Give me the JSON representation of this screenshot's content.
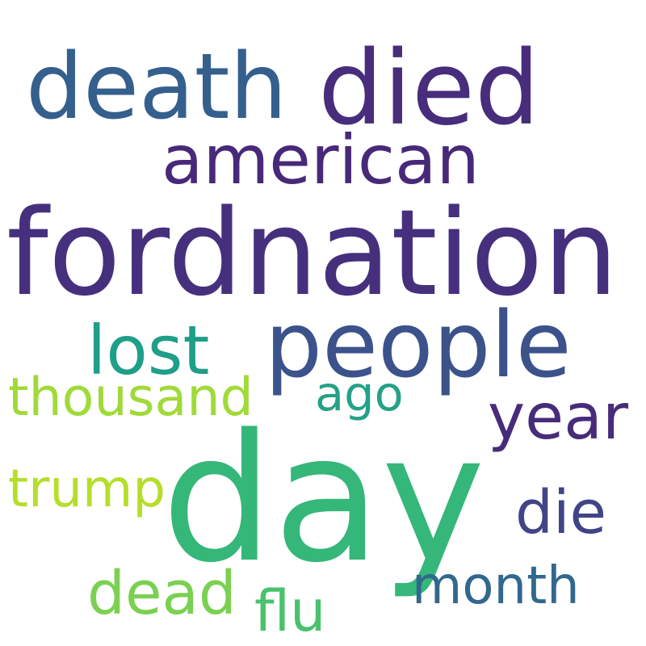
{
  "word_cloud": {
    "background": "#ffffff",
    "words": [
      {
        "id": "fordnation",
        "text": "fordnation",
        "color": "#46307e"
      },
      {
        "id": "day",
        "text": "day",
        "color": "#35b779"
      },
      {
        "id": "died",
        "text": "died",
        "color": "#472d7b"
      },
      {
        "id": "death",
        "text": "death",
        "color": "#355f8d"
      },
      {
        "id": "people",
        "text": "people",
        "color": "#3b528b"
      },
      {
        "id": "american",
        "text": "american",
        "color": "#482979"
      },
      {
        "id": "lost",
        "text": "lost",
        "color": "#1f9e89"
      },
      {
        "id": "thousand",
        "text": "thousand",
        "color": "#a0da39"
      },
      {
        "id": "ago",
        "text": "ago",
        "color": "#25a186"
      },
      {
        "id": "year",
        "text": "year",
        "color": "#472c7a"
      },
      {
        "id": "trump",
        "text": "trump",
        "color": "#b5de2b"
      },
      {
        "id": "die",
        "text": "die",
        "color": "#414487"
      },
      {
        "id": "dead",
        "text": "dead",
        "color": "#7ad151"
      },
      {
        "id": "flu",
        "text": "flu",
        "color": "#4ac16d"
      },
      {
        "id": "month",
        "text": "month",
        "color": "#31688e"
      }
    ]
  }
}
